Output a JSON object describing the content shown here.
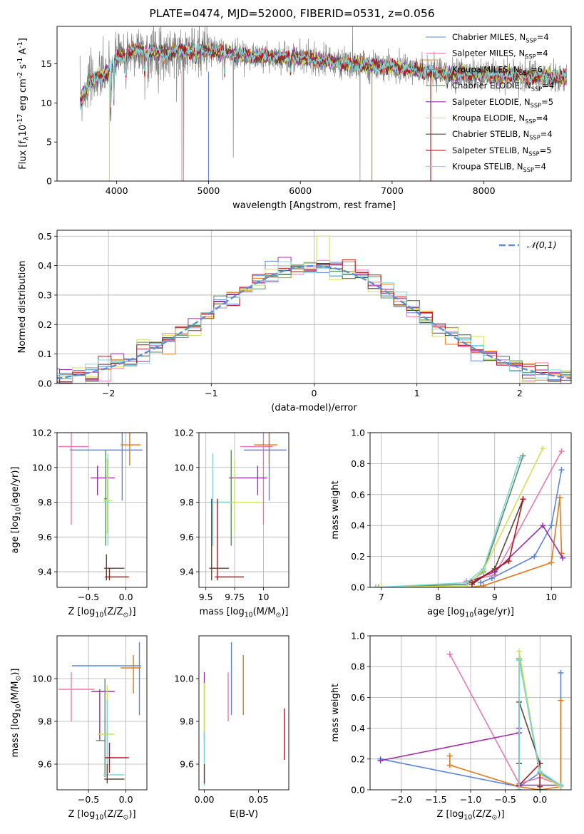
{
  "figure": {
    "title": "PLATE=0474, MJD=52000, FIBERID=0531, z=0.056"
  },
  "series": [
    {
      "name": "Chabrier MILES, N$_{SSP}$=4",
      "color": "#5b86db"
    },
    {
      "name": "Salpeter MILES, N$_{SSP}$=4",
      "color": "#e57ab2"
    },
    {
      "name": "Kroupa MILES, N$_{SSP}$=6",
      "color": "#e07a1f"
    },
    {
      "name": "Chabrier ELODIE, N$_{SSP}$=4",
      "color": "#5e8f67"
    },
    {
      "name": "Salpeter ELODIE, N$_{SSP}$=5",
      "color": "#9a2fa6"
    },
    {
      "name": "Kroupa ELODIE, N$_{SSP}$=4",
      "color": "#d2e05a"
    },
    {
      "name": "Chabrier STELIB, N$_{SSP}$=4",
      "color": "#5a4a3a"
    },
    {
      "name": "Salpeter STELIB, N$_{SSP}$=5",
      "color": "#b4161b"
    },
    {
      "name": "Kroupa STELIB, N$_{SSP}$=4",
      "color": "#7fd6d9"
    }
  ],
  "chart_data": [
    {
      "id": "spectrum",
      "type": "line",
      "xlabel": "wavelength [Angstrom, rest frame]",
      "ylabel": "Flux [f$_{\\lambda}$10$^{-17}$ erg cm$^{-2}$ s$^{-1}$ A$^{-1}$]",
      "xlim": [
        3350,
        8950
      ],
      "ylim": [
        0,
        19.8
      ],
      "xticks": [
        4000,
        5000,
        6000,
        7000,
        8000
      ],
      "yticks": [
        0,
        5,
        10,
        15
      ],
      "data_color": "#808080",
      "continuum": [
        [
          3600,
          10.2
        ],
        [
          3700,
          12.6
        ],
        [
          3800,
          13.2
        ],
        [
          3900,
          14.0
        ],
        [
          4000,
          15.8
        ],
        [
          4200,
          16.8
        ],
        [
          4500,
          16.4
        ],
        [
          5000,
          16.8
        ],
        [
          5500,
          16.0
        ],
        [
          6000,
          15.8
        ],
        [
          6500,
          15.0
        ],
        [
          7000,
          14.6
        ],
        [
          7500,
          13.8
        ],
        [
          8000,
          13.6
        ],
        [
          8500,
          13.5
        ],
        [
          8900,
          13.2
        ]
      ],
      "legend_position": "upper right",
      "grid": false
    },
    {
      "id": "residuals",
      "type": "line",
      "xlabel": "(data-model)/error",
      "ylabel": "Normed distribution",
      "xlim": [
        -2.5,
        2.5
      ],
      "ylim": [
        0,
        0.52
      ],
      "xticks": [
        -2,
        -1,
        0,
        1,
        2
      ],
      "yticks": [
        0.0,
        0.1,
        0.2,
        0.3,
        0.4,
        0.5
      ],
      "grid": true,
      "gauss_label": "$\\mathcal{N}(0,1)$",
      "gauss_color": "#5b8fd6",
      "legend_position": "upper right"
    },
    {
      "id": "Z_age",
      "type": "scatter",
      "xlabel": "Z [log$_{10}$(Z/Z$_\\odot$)]",
      "ylabel": "age  [log$_{10}$(age/yr)]",
      "xlim": [
        -0.92,
        0.28
      ],
      "ylim": [
        9.31,
        10.2
      ],
      "xticks": [
        -0.5,
        0.0
      ],
      "yticks": [
        9.4,
        9.6,
        9.8,
        10.0,
        10.2
      ],
      "grid": true,
      "points": [
        {
          "s": 0,
          "x": -0.05,
          "y": 10.1,
          "xe": [
            -0.75,
            0.22
          ],
          "ye": [
            9.81,
            10.2
          ]
        },
        {
          "s": 1,
          "x": -0.73,
          "y": 10.12,
          "xe": [
            -0.9,
            -0.5
          ],
          "ye": [
            9.67,
            10.2
          ]
        },
        {
          "s": 2,
          "x": 0.05,
          "y": 10.13,
          "xe": [
            -0.07,
            0.2
          ],
          "ye": [
            10.01,
            10.2
          ]
        },
        {
          "s": 4,
          "x": -0.38,
          "y": 9.94,
          "xe": [
            -0.47,
            -0.15
          ],
          "ye": [
            9.84,
            10.01
          ]
        },
        {
          "s": 3,
          "x": -0.27,
          "y": 9.82,
          "xe": [
            -0.29,
            -0.25
          ],
          "ye": [
            9.55,
            10.1
          ]
        },
        {
          "s": 5,
          "x": -0.25,
          "y": 9.81,
          "xe": [
            -0.3,
            -0.18
          ],
          "ye": [
            9.62,
            10.05
          ]
        },
        {
          "s": 8,
          "x": -0.24,
          "y": 9.8,
          "xe": [
            -0.3,
            -0.2
          ],
          "ye": [
            9.55,
            10.08
          ]
        },
        {
          "s": 6,
          "x": -0.26,
          "y": 9.42,
          "xe": [
            -0.29,
            -0.02
          ],
          "ye": [
            9.35,
            9.5
          ]
        },
        {
          "s": 7,
          "x": -0.22,
          "y": 9.37,
          "xe": [
            -0.28,
            0.04
          ],
          "ye": [
            9.35,
            9.42
          ]
        }
      ]
    },
    {
      "id": "mass_age",
      "type": "scatter",
      "xlabel": "mass [log$_{10}$(M/M$_\\odot$)]",
      "ylabel": "",
      "xlim": [
        9.44,
        10.22
      ],
      "ylim": [
        9.31,
        10.2
      ],
      "xticks": [
        9.5,
        9.75,
        10.0
      ],
      "yticks": [
        9.4,
        9.6,
        9.8,
        10.0,
        10.2
      ],
      "grid": true,
      "points": [
        {
          "s": 0,
          "x": 10.05,
          "y": 10.1,
          "xe": [
            9.83,
            10.2
          ],
          "ye": [
            9.81,
            10.2
          ]
        },
        {
          "s": 1,
          "x": 10.0,
          "y": 10.12,
          "xe": [
            9.8,
            10.08
          ],
          "ye": [
            9.67,
            10.2
          ]
        },
        {
          "s": 2,
          "x": 10.05,
          "y": 10.13,
          "xe": [
            9.92,
            10.12
          ],
          "ye": [
            10.01,
            10.2
          ]
        },
        {
          "s": 4,
          "x": 9.95,
          "y": 9.94,
          "xe": [
            9.7,
            10.03
          ],
          "ye": [
            9.84,
            10.01
          ]
        },
        {
          "s": 3,
          "x": 9.72,
          "y": 9.8,
          "xe": [
            9.55,
            9.75
          ],
          "ye": [
            9.55,
            10.1
          ]
        },
        {
          "s": 5,
          "x": 9.75,
          "y": 9.8,
          "xe": [
            9.58,
            9.99
          ],
          "ye": [
            9.62,
            10.05
          ]
        },
        {
          "s": 8,
          "x": 9.56,
          "y": 9.8,
          "xe": [
            9.52,
            9.72
          ],
          "ye": [
            9.55,
            10.08
          ]
        },
        {
          "s": 6,
          "x": 9.55,
          "y": 9.42,
          "xe": [
            9.53,
            9.7
          ],
          "ye": [
            9.35,
            9.82
          ]
        },
        {
          "s": 7,
          "x": 9.6,
          "y": 9.37,
          "xe": [
            9.58,
            9.83
          ],
          "ye": [
            9.35,
            9.82
          ]
        }
      ]
    },
    {
      "id": "age_weight",
      "type": "line",
      "xlabel": "age  [log$_{10}$(age/yr)]",
      "ylabel": "mass weight",
      "xlim": [
        6.8,
        10.35
      ],
      "ylim": [
        0,
        1.0
      ],
      "xticks": [
        7,
        8,
        9,
        10
      ],
      "yticks": [
        0.0,
        0.2,
        0.4,
        0.6,
        0.8,
        1.0
      ],
      "grid": true,
      "lines": [
        {
          "s": 0,
          "pts": [
            [
              8.75,
              0.03
            ],
            [
              8.95,
              0.06
            ],
            [
              9.7,
              0.2
            ],
            [
              10.0,
              0.4
            ],
            [
              10.18,
              0.76
            ]
          ]
        },
        {
          "s": 1,
          "pts": [
            [
              8.5,
              0.04
            ],
            [
              9.0,
              0.08
            ],
            [
              10.18,
              0.88
            ]
          ]
        },
        {
          "s": 2,
          "pts": [
            [
              6.95,
              0.0
            ],
            [
              8.5,
              0.0
            ],
            [
              8.8,
              0.01
            ],
            [
              10.0,
              0.16
            ],
            [
              10.15,
              0.58
            ],
            [
              10.18,
              0.22
            ]
          ]
        },
        {
          "s": 3,
          "pts": [
            [
              6.9,
              0.0
            ],
            [
              8.5,
              0.02
            ],
            [
              8.8,
              0.1
            ],
            [
              9.5,
              0.85
            ]
          ]
        },
        {
          "s": 4,
          "pts": [
            [
              8.5,
              0.03
            ],
            [
              9.0,
              0.1
            ],
            [
              9.85,
              0.4
            ],
            [
              10.2,
              0.19
            ]
          ]
        },
        {
          "s": 5,
          "pts": [
            [
              7.0,
              0.0
            ],
            [
              8.5,
              0.01
            ],
            [
              8.8,
              0.11
            ],
            [
              9.85,
              0.9
            ]
          ]
        },
        {
          "s": 6,
          "pts": [
            [
              8.6,
              0.02
            ],
            [
              9.0,
              0.12
            ],
            [
              9.5,
              0.57
            ]
          ]
        },
        {
          "s": 7,
          "pts": [
            [
              8.6,
              0.03
            ],
            [
              9.25,
              0.17
            ],
            [
              9.5,
              0.57
            ]
          ]
        },
        {
          "s": 8,
          "pts": [
            [
              6.9,
              0.0
            ],
            [
              8.5,
              0.03
            ],
            [
              8.8,
              0.12
            ],
            [
              9.45,
              0.84
            ]
          ]
        }
      ]
    },
    {
      "id": "Z_mass",
      "type": "scatter",
      "xlabel": "Z [log$_{10}$(Z/Z$_\\odot$)]",
      "ylabel": "mass [log$_{10}$(M/M$_\\odot$)]",
      "xlim": [
        -0.92,
        0.28
      ],
      "ylim": [
        9.48,
        10.2
      ],
      "xticks": [
        -0.5,
        0.0
      ],
      "yticks": [
        9.6,
        9.8,
        10.0
      ],
      "grid": true,
      "points": [
        {
          "s": 0,
          "x": 0.18,
          "y": 10.06,
          "xe": [
            -0.72,
            0.2
          ],
          "ye": [
            9.83,
            10.17
          ]
        },
        {
          "s": 1,
          "x": -0.73,
          "y": 9.95,
          "xe": [
            -0.9,
            -0.42
          ],
          "ye": [
            9.8,
            10.03
          ]
        },
        {
          "s": 2,
          "x": 0.1,
          "y": 10.05,
          "xe": [
            -0.07,
            0.2
          ],
          "ye": [
            9.93,
            10.11
          ]
        },
        {
          "s": 4,
          "x": -0.35,
          "y": 9.94,
          "xe": [
            -0.46,
            -0.15
          ],
          "ye": [
            9.71,
            9.95
          ]
        },
        {
          "s": 3,
          "x": -0.28,
          "y": 9.71,
          "xe": [
            -0.4,
            -0.27
          ],
          "ye": [
            9.54,
            10.0
          ]
        },
        {
          "s": 5,
          "x": -0.25,
          "y": 9.74,
          "xe": [
            -0.38,
            -0.15
          ],
          "ye": [
            9.58,
            9.97
          ]
        },
        {
          "s": 8,
          "x": -0.25,
          "y": 9.55,
          "xe": [
            -0.3,
            -0.02
          ],
          "ye": [
            9.52,
            9.9
          ]
        },
        {
          "s": 6,
          "x": -0.25,
          "y": 9.53,
          "xe": [
            -0.29,
            -0.02
          ],
          "ye": [
            9.51,
            9.6
          ]
        },
        {
          "s": 7,
          "x": -0.22,
          "y": 9.63,
          "xe": [
            -0.28,
            0.04
          ],
          "ye": [
            9.56,
            9.7
          ]
        }
      ]
    },
    {
      "id": "ebv_mass",
      "type": "scatter",
      "xlabel": "E(B-V)",
      "ylabel": "",
      "xlim": [
        -0.005,
        0.078
      ],
      "ylim": [
        9.48,
        10.2
      ],
      "xticks": [
        0.0,
        0.05
      ],
      "yticks": [
        9.6,
        9.8,
        10.0
      ],
      "grid": false,
      "points": [
        {
          "s": 0,
          "x": 0.025,
          "y": 10.06,
          "xe": [
            0.025,
            0.025
          ],
          "ye": [
            9.83,
            10.17
          ]
        },
        {
          "s": 1,
          "x": 0.022,
          "y": 9.95,
          "xe": [
            0.022,
            0.022
          ],
          "ye": [
            9.8,
            10.03
          ]
        },
        {
          "s": 2,
          "x": 0.036,
          "y": 10.05,
          "xe": [
            0.036,
            0.036
          ],
          "ye": [
            9.83,
            10.11
          ]
        },
        {
          "s": 4,
          "x": 0.0,
          "y": 9.94,
          "xe": [
            0.0,
            0.0
          ],
          "ye": [
            9.7,
            10.03
          ]
        },
        {
          "s": 3,
          "x": 0.0,
          "y": 9.71,
          "xe": [
            0.0,
            0.0
          ],
          "ye": [
            9.5,
            9.75
          ]
        },
        {
          "s": 5,
          "x": 0.0,
          "y": 9.8,
          "xe": [
            0.0,
            0.0
          ],
          "ye": [
            9.58,
            9.98
          ]
        },
        {
          "s": 8,
          "x": 0.0,
          "y": 9.55,
          "xe": [
            0.0,
            0.0
          ],
          "ye": [
            9.5,
            9.75
          ]
        },
        {
          "s": 6,
          "x": 0.0,
          "y": 9.53,
          "xe": [
            0.0,
            0.0
          ],
          "ye": [
            9.51,
            9.6
          ]
        },
        {
          "s": 7,
          "x": 0.074,
          "y": 9.75,
          "xe": [
            0.074,
            0.074
          ],
          "ye": [
            9.62,
            9.86
          ]
        }
      ]
    },
    {
      "id": "Z_weight",
      "type": "line",
      "xlabel": "Z [log$_{10}$(Z/Z$_\\odot$)]",
      "ylabel": "mass weight",
      "xlim": [
        -2.45,
        0.45
      ],
      "ylim": [
        0,
        1.0
      ],
      "xticks": [
        -2.0,
        -1.5,
        -1.0,
        -0.5,
        0.0
      ],
      "yticks": [
        0.0,
        0.2,
        0.4,
        0.6,
        0.8,
        1.0
      ],
      "grid": true,
      "lines": [
        {
          "s": 0,
          "pts": [
            [
              -2.3,
              0.2
            ],
            [
              -0.3,
              0.02
            ],
            [
              0.0,
              0.11
            ],
            [
              0.3,
              0.03
            ],
            [
              0.3,
              0.76
            ]
          ]
        },
        {
          "s": 1,
          "pts": [
            [
              -1.3,
              0.88
            ],
            [
              -0.3,
              0.04
            ],
            [
              0.0,
              0.08
            ],
            [
              0.3,
              0.03
            ]
          ]
        },
        {
          "s": 2,
          "pts": [
            [
              -1.3,
              0.22
            ],
            [
              -1.3,
              0.16
            ],
            [
              -0.3,
              0.02
            ],
            [
              0.0,
              0.0
            ],
            [
              0.3,
              0.02
            ],
            [
              0.3,
              0.58
            ]
          ]
        },
        {
          "s": 3,
          "pts": [
            [
              -0.3,
              0.0
            ],
            [
              -0.3,
              0.85
            ],
            [
              0.0,
              0.1
            ],
            [
              0.3,
              0.02
            ]
          ]
        },
        {
          "s": 4,
          "pts": [
            [
              -2.3,
              0.19
            ],
            [
              -0.3,
              0.37
            ],
            [
              -0.3,
              0.4
            ],
            [
              -0.3,
              0.03
            ],
            [
              0.3,
              0.03
            ]
          ]
        },
        {
          "s": 5,
          "pts": [
            [
              -0.3,
              0.0
            ],
            [
              -0.3,
              0.9
            ],
            [
              0.0,
              0.1
            ],
            [
              0.3,
              0.02
            ]
          ]
        },
        {
          "s": 6,
          "pts": [
            [
              -0.3,
              0.17
            ],
            [
              -0.3,
              0.57
            ],
            [
              0.0,
              0.17
            ],
            [
              0.0,
              0.02
            ]
          ]
        },
        {
          "s": 7,
          "pts": [
            [
              -0.3,
              0.03
            ],
            [
              0.0,
              0.17
            ],
            [
              0.0,
              0.0
            ]
          ]
        },
        {
          "s": 8,
          "pts": [
            [
              -0.3,
              0.0
            ],
            [
              -0.3,
              0.84
            ],
            [
              0.0,
              0.12
            ],
            [
              0.3,
              0.03
            ]
          ]
        }
      ]
    }
  ]
}
